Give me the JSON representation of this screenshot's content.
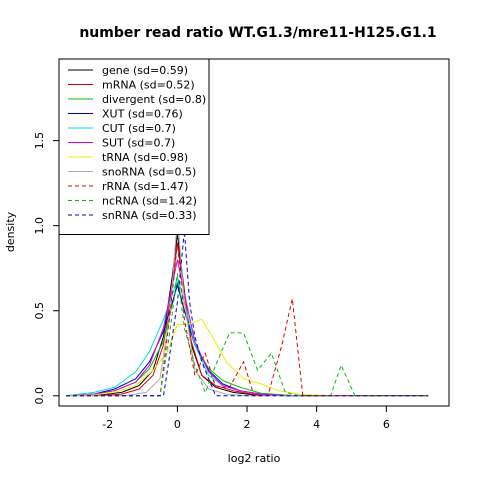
{
  "chart_data": {
    "type": "line",
    "title": "number read ratio WT.G1.3/mre11-H125.G1.1",
    "xlabel": "log2 ratio",
    "ylabel": "density",
    "xlim": [
      -3.4,
      7.8
    ],
    "ylim": [
      -0.06,
      1.98
    ],
    "xticks": [
      -2,
      0,
      2,
      4,
      6
    ],
    "yticks": [
      0.0,
      0.5,
      1.0,
      1.5
    ],
    "xtick_labels": [
      "-2",
      "0",
      "2",
      "4",
      "6"
    ],
    "ytick_labels": [
      "0.0",
      "0.5",
      "1.0",
      "1.5"
    ],
    "legend_position": "top-left",
    "series": [
      {
        "name": "gene (sd=0.59)",
        "color": "#000000",
        "dash": "solid",
        "x": [
          -3.2,
          -2.2,
          -1.6,
          -1.1,
          -0.7,
          -0.4,
          -0.15,
          0,
          0.15,
          0.4,
          0.7,
          1.1,
          1.6,
          2.2,
          3.2,
          4.5,
          7.2
        ],
        "y": [
          0,
          0.005,
          0.02,
          0.06,
          0.15,
          0.35,
          0.7,
          0.95,
          0.7,
          0.3,
          0.12,
          0.05,
          0.02,
          0.005,
          0,
          0,
          0
        ]
      },
      {
        "name": "mRNA (sd=0.52)",
        "color": "#dd0000",
        "dash": "solid",
        "x": [
          -3.2,
          -2.2,
          -1.6,
          -1.1,
          -0.7,
          -0.4,
          -0.15,
          0,
          0.15,
          0.4,
          0.7,
          1.1,
          1.6,
          2.2,
          3.2,
          4.5,
          7.2
        ],
        "y": [
          0,
          0.002,
          0.01,
          0.04,
          0.12,
          0.3,
          0.65,
          0.9,
          0.68,
          0.32,
          0.12,
          0.06,
          0.03,
          0.008,
          0,
          0,
          0
        ]
      },
      {
        "name": "divergent (sd=0.8)",
        "color": "#00bb00",
        "dash": "solid",
        "x": [
          -3.2,
          -2.4,
          -1.8,
          -1.2,
          -0.8,
          -0.4,
          -0.1,
          0,
          0.2,
          0.5,
          0.9,
          1.3,
          1.8,
          2.4,
          3.2,
          4.5,
          7.2
        ],
        "y": [
          0,
          0.01,
          0.03,
          0.08,
          0.16,
          0.32,
          0.58,
          0.67,
          0.5,
          0.3,
          0.16,
          0.09,
          0.05,
          0.015,
          0.003,
          0,
          0
        ]
      },
      {
        "name": "XUT (sd=0.76)",
        "color": "#0000cc",
        "dash": "solid",
        "x": [
          -3.2,
          -2.4,
          -1.8,
          -1.2,
          -0.8,
          -0.4,
          -0.1,
          0,
          0.2,
          0.5,
          0.9,
          1.3,
          1.8,
          2.4,
          3.2,
          4.5,
          7.2
        ],
        "y": [
          0,
          0.01,
          0.04,
          0.1,
          0.2,
          0.38,
          0.58,
          0.65,
          0.5,
          0.3,
          0.15,
          0.07,
          0.03,
          0.01,
          0,
          0,
          0
        ]
      },
      {
        "name": "CUT (sd=0.7)",
        "color": "#00dddd",
        "dash": "solid",
        "x": [
          -3.2,
          -2.4,
          -1.8,
          -1.2,
          -0.8,
          -0.4,
          -0.1,
          0,
          0.2,
          0.5,
          0.9,
          1.3,
          1.8,
          2.4,
          3.2,
          4.5,
          7.2
        ],
        "y": [
          0,
          0.02,
          0.05,
          0.14,
          0.26,
          0.45,
          0.62,
          0.7,
          0.55,
          0.3,
          0.12,
          0.06,
          0.03,
          0.01,
          0,
          0,
          0
        ]
      },
      {
        "name": "SUT (sd=0.7)",
        "color": "#dd00dd",
        "dash": "solid",
        "x": [
          -3.2,
          -2.4,
          -1.8,
          -1.2,
          -0.8,
          -0.4,
          -0.1,
          0,
          0.2,
          0.5,
          0.9,
          1.3,
          1.8,
          2.4,
          3.2,
          4.5,
          7.2
        ],
        "y": [
          0,
          0.01,
          0.03,
          0.08,
          0.18,
          0.4,
          0.7,
          0.8,
          0.6,
          0.32,
          0.14,
          0.06,
          0.03,
          0.01,
          0,
          0,
          0
        ]
      },
      {
        "name": "tRNA (sd=0.98)",
        "color": "#eeee00",
        "dash": "solid",
        "x": [
          -3.2,
          -2.4,
          -1.8,
          -1.2,
          -0.7,
          -0.3,
          0,
          0.3,
          0.7,
          1.0,
          1.4,
          1.9,
          2.4,
          2.9,
          3.5,
          4.5,
          7.2
        ],
        "y": [
          0,
          0.005,
          0.02,
          0.06,
          0.15,
          0.25,
          0.42,
          0.42,
          0.45,
          0.35,
          0.2,
          0.1,
          0.07,
          0.03,
          0.01,
          0,
          0
        ]
      },
      {
        "name": "snoRNA (sd=0.5)",
        "color": "#aaaaaa",
        "dash": "solid",
        "x": [
          -3.2,
          -1.5,
          -0.9,
          -0.5,
          -0.2,
          0,
          0.2,
          0.5,
          0.9,
          1.4,
          2,
          3,
          4.5,
          7.2
        ],
        "y": [
          0,
          0,
          0.02,
          0.1,
          0.5,
          1.05,
          0.55,
          0.15,
          0.04,
          0.01,
          0,
          0,
          0,
          0
        ]
      },
      {
        "name": "rRNA (sd=1.47)",
        "color": "#dd0000",
        "dash": "dashed",
        "x": [
          -3.2,
          -0.5,
          -0.2,
          0,
          0.2,
          0.5,
          0.8,
          1.1,
          1.5,
          1.9,
          2.2,
          2.6,
          3.0,
          3.3,
          3.6,
          4.0,
          7.2
        ],
        "y": [
          0,
          0,
          0.5,
          0.9,
          0.45,
          0.12,
          0.25,
          0.05,
          0.05,
          0.2,
          0,
          0,
          0.3,
          0.57,
          0,
          0,
          0
        ]
      },
      {
        "name": "ncRNA (sd=1.42)",
        "color": "#00bb00",
        "dash": "dashed",
        "x": [
          -3.2,
          -0.5,
          -0.2,
          0,
          0.2,
          0.5,
          0.8,
          1.1,
          1.5,
          1.9,
          2.3,
          2.7,
          3.1,
          3.5,
          4.0,
          4.4,
          4.7,
          5.1,
          5.5,
          7.2
        ],
        "y": [
          0,
          0,
          0.4,
          0.72,
          0.4,
          0.18,
          0.02,
          0.18,
          0.37,
          0.37,
          0.15,
          0.25,
          0.02,
          0,
          0,
          0,
          0.18,
          0,
          0,
          0
        ]
      },
      {
        "name": "snRNA (sd=0.33)",
        "color": "#0000cc",
        "dash": "dashed",
        "x": [
          -3.2,
          -0.4,
          -0.25,
          0,
          0.2,
          0.35,
          0.5,
          0.7,
          0.9,
          1.1,
          2,
          7.2
        ],
        "y": [
          0,
          0,
          0.2,
          0.55,
          0.97,
          0.55,
          0.35,
          0.2,
          0.1,
          0,
          0,
          0
        ]
      }
    ]
  }
}
